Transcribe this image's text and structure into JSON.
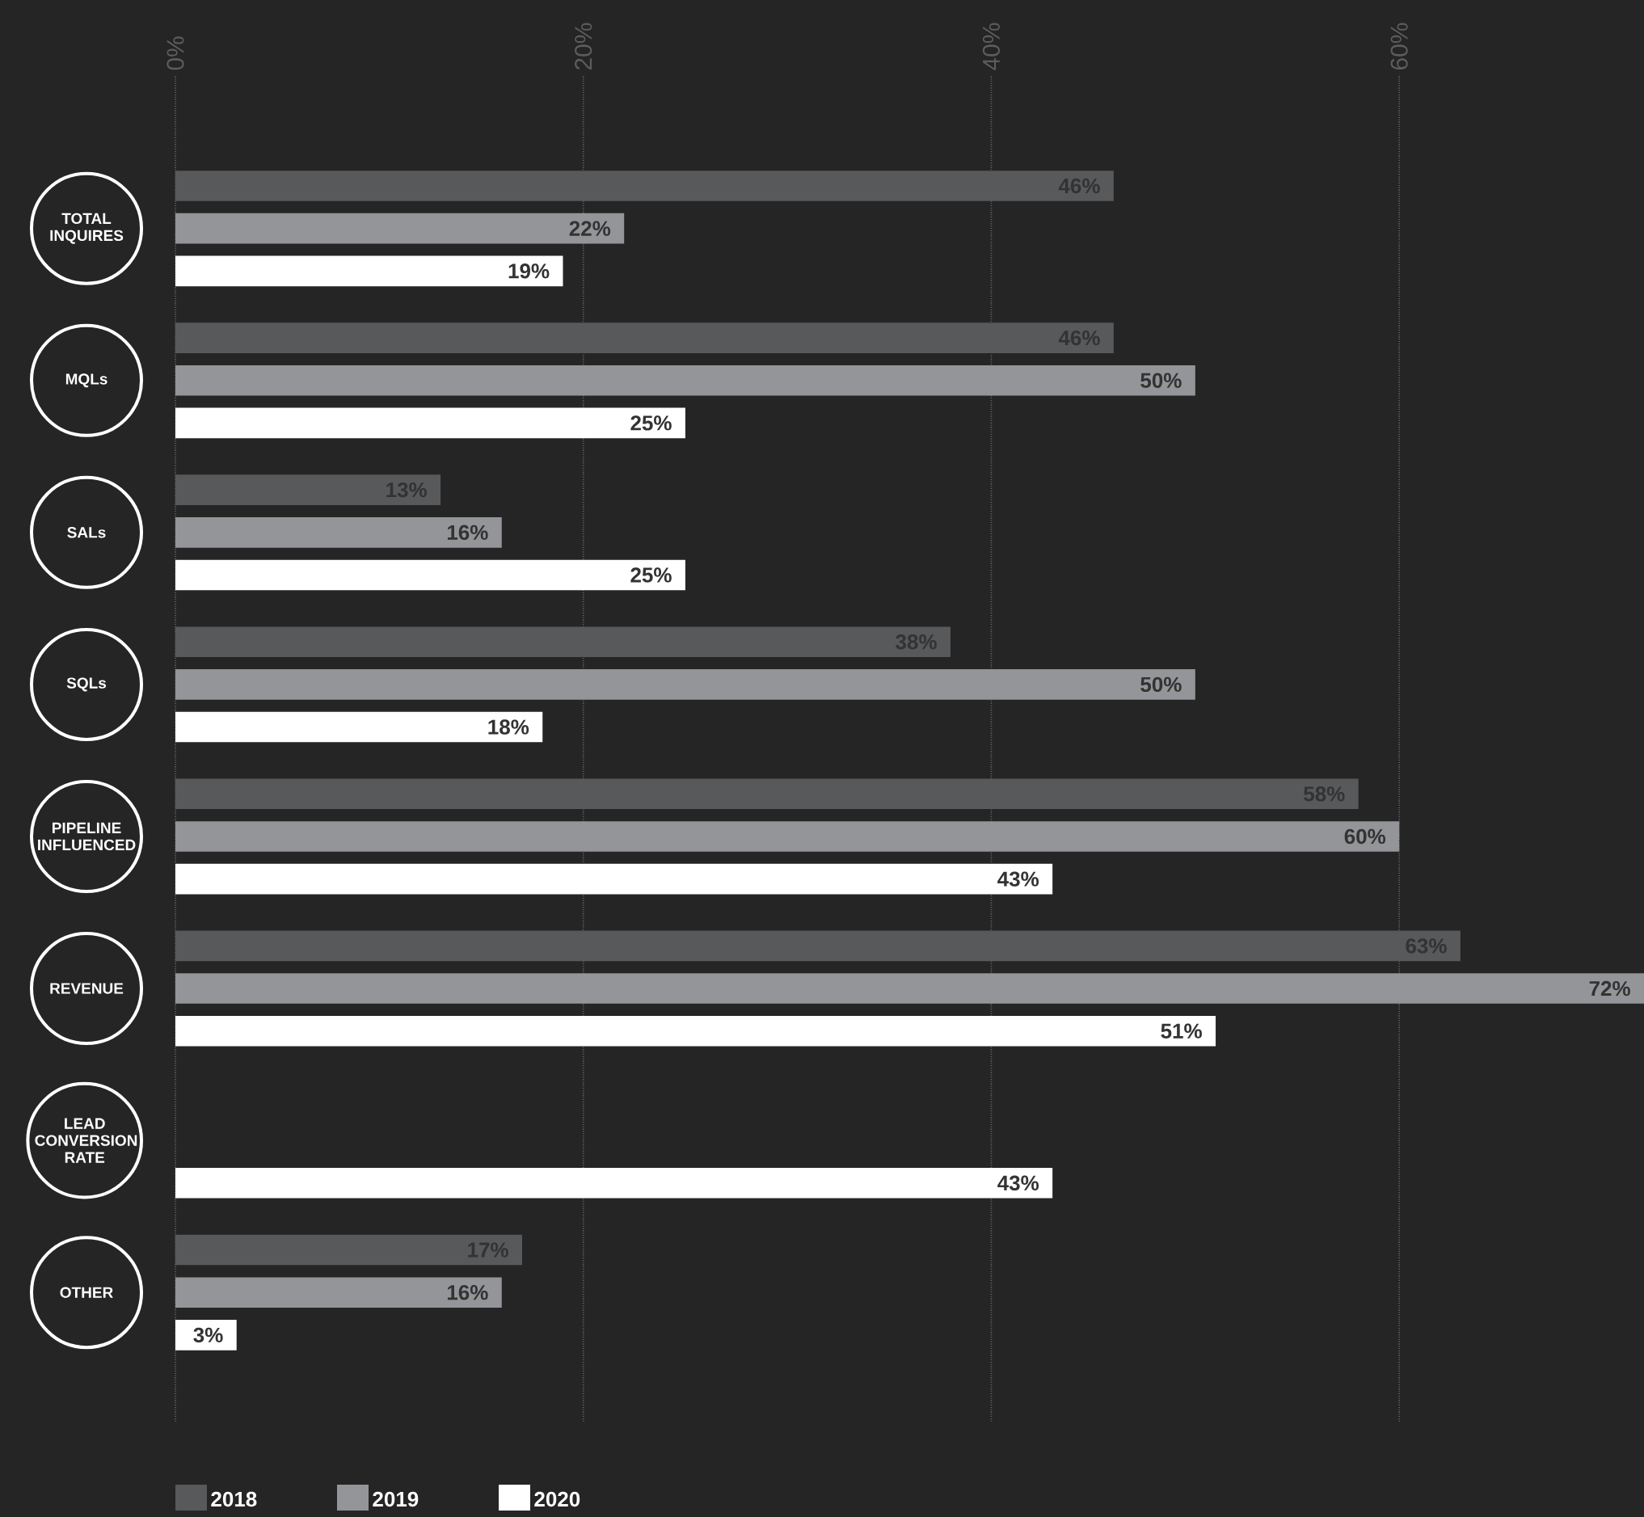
{
  "chart_data": {
    "type": "bar",
    "orientation": "horizontal",
    "categories": [
      "TOTAL INQUIRES",
      "MQLs",
      "SALs",
      "SQLs",
      "PIPELINE INFLUENCED",
      "REVENUE",
      "LEAD CONVERSION RATE",
      "OTHER"
    ],
    "series": [
      {
        "name": "2018",
        "color": "#58595b",
        "values": [
          46,
          46,
          13,
          38,
          58,
          63,
          null,
          17
        ],
        "value_labels": [
          "46%",
          "46%",
          "13%",
          "38%",
          "58%",
          "63%",
          null,
          "17%"
        ]
      },
      {
        "name": "2019",
        "color": "#939598",
        "values": [
          22,
          50,
          16,
          50,
          60,
          72,
          null,
          16
        ],
        "value_labels": [
          "22%",
          "50%",
          "16%",
          "50%",
          "60%",
          "72%",
          null,
          "16%"
        ]
      },
      {
        "name": "2020",
        "color": "#ffffff",
        "values": [
          19,
          25,
          25,
          18,
          43,
          51,
          43,
          3
        ],
        "value_labels": [
          "19%",
          "25%",
          "25%",
          "18%",
          "43%",
          "51%",
          "43%",
          "3%"
        ]
      }
    ],
    "xlim": [
      0,
      72
    ],
    "xticks": [
      {
        "value": 0,
        "label": "0%"
      },
      {
        "value": 20,
        "label": "20%"
      },
      {
        "value": 40,
        "label": "40%"
      },
      {
        "value": 60,
        "label": "60%"
      }
    ],
    "grid": "x",
    "legend": "bottom left"
  }
}
